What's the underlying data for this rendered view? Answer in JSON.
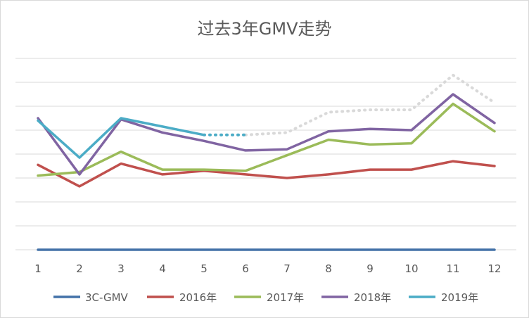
{
  "chart_data": {
    "type": "line",
    "title": "过去3年GMV走势",
    "xlabel": "",
    "ylabel": "",
    "categories": [
      "1",
      "2",
      "3",
      "4",
      "5",
      "6",
      "7",
      "8",
      "9",
      "10",
      "11",
      "12"
    ],
    "ylim": [
      0,
      8
    ],
    "grid": true,
    "legend": "bottom",
    "series": [
      {
        "name": "3C-GMV",
        "color": "#4472a8",
        "values": [
          0,
          0,
          0,
          0,
          0,
          0,
          0,
          0,
          0,
          0,
          0,
          0
        ]
      },
      {
        "name": "2016年",
        "color": "#c0504d",
        "values": [
          3.55,
          2.65,
          3.6,
          3.15,
          3.3,
          3.15,
          3.0,
          3.15,
          3.35,
          3.35,
          3.7,
          3.5
        ]
      },
      {
        "name": "2017年",
        "color": "#9bbb59",
        "values": [
          3.1,
          3.25,
          4.1,
          3.35,
          3.35,
          3.3,
          3.95,
          4.6,
          4.4,
          4.45,
          6.1,
          4.95
        ]
      },
      {
        "name": "2018年",
        "color": "#8064a2",
        "values": [
          5.5,
          3.15,
          5.45,
          4.9,
          4.55,
          4.15,
          4.2,
          4.95,
          5.05,
          5.0,
          6.5,
          5.3
        ]
      },
      {
        "name": "2019年",
        "color": "#4bacc6",
        "values": [
          5.4,
          3.85,
          5.5,
          5.15,
          4.8,
          null,
          null,
          null,
          null,
          null,
          null,
          null
        ],
        "projected": [
          null,
          null,
          null,
          null,
          4.8,
          4.8,
          4.9,
          5.75,
          5.85,
          5.85,
          7.3,
          6.15
        ]
      }
    ]
  }
}
